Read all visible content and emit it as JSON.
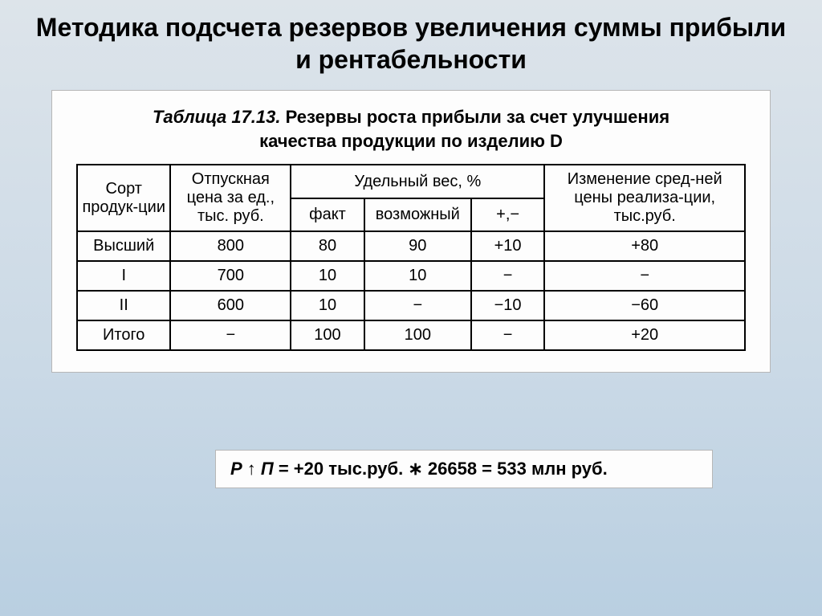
{
  "slide": {
    "title": "Методика подсчета резервов увеличения суммы прибыли и рентабельности",
    "background_gradient": [
      "#dde4ea",
      "#cad9e6",
      "#b9cfe1"
    ]
  },
  "table": {
    "caption_num": "Таблица 17.13.",
    "caption_desc_line1": "Резервы роста прибыли за счет улучшения",
    "caption_desc_line2": "качества продукции по изделию D",
    "header": {
      "c1": "Сорт продук-ции",
      "c2": "Отпускная цена за ед., тыс. руб.",
      "c3_group": "Удельный вес, %",
      "c3a": "факт",
      "c3b": "возможный",
      "c3c": "+,−",
      "c4": "Изменение сред-ней цены реализа-ции, тыс.руб."
    },
    "rows": [
      {
        "sort": "Высший",
        "price": "800",
        "fact": "80",
        "poss": "90",
        "delta": "+10",
        "change": "+80"
      },
      {
        "sort": "I",
        "price": "700",
        "fact": "10",
        "poss": "10",
        "delta": "−",
        "change": "−"
      },
      {
        "sort": "II",
        "price": "600",
        "fact": "10",
        "poss": "−",
        "delta": "−10",
        "change": "−60"
      },
      {
        "sort": "Итого",
        "price": "−",
        "fact": "100",
        "poss": "100",
        "delta": "−",
        "change": "+20"
      }
    ],
    "col_widths": [
      "14%",
      "18%",
      "11%",
      "16%",
      "11%",
      "30%"
    ]
  },
  "formula": {
    "lhs_var": "Р ↑ П",
    "rhs": " = +20 тыс.руб.  ∗  26658 = 533 млн руб."
  }
}
